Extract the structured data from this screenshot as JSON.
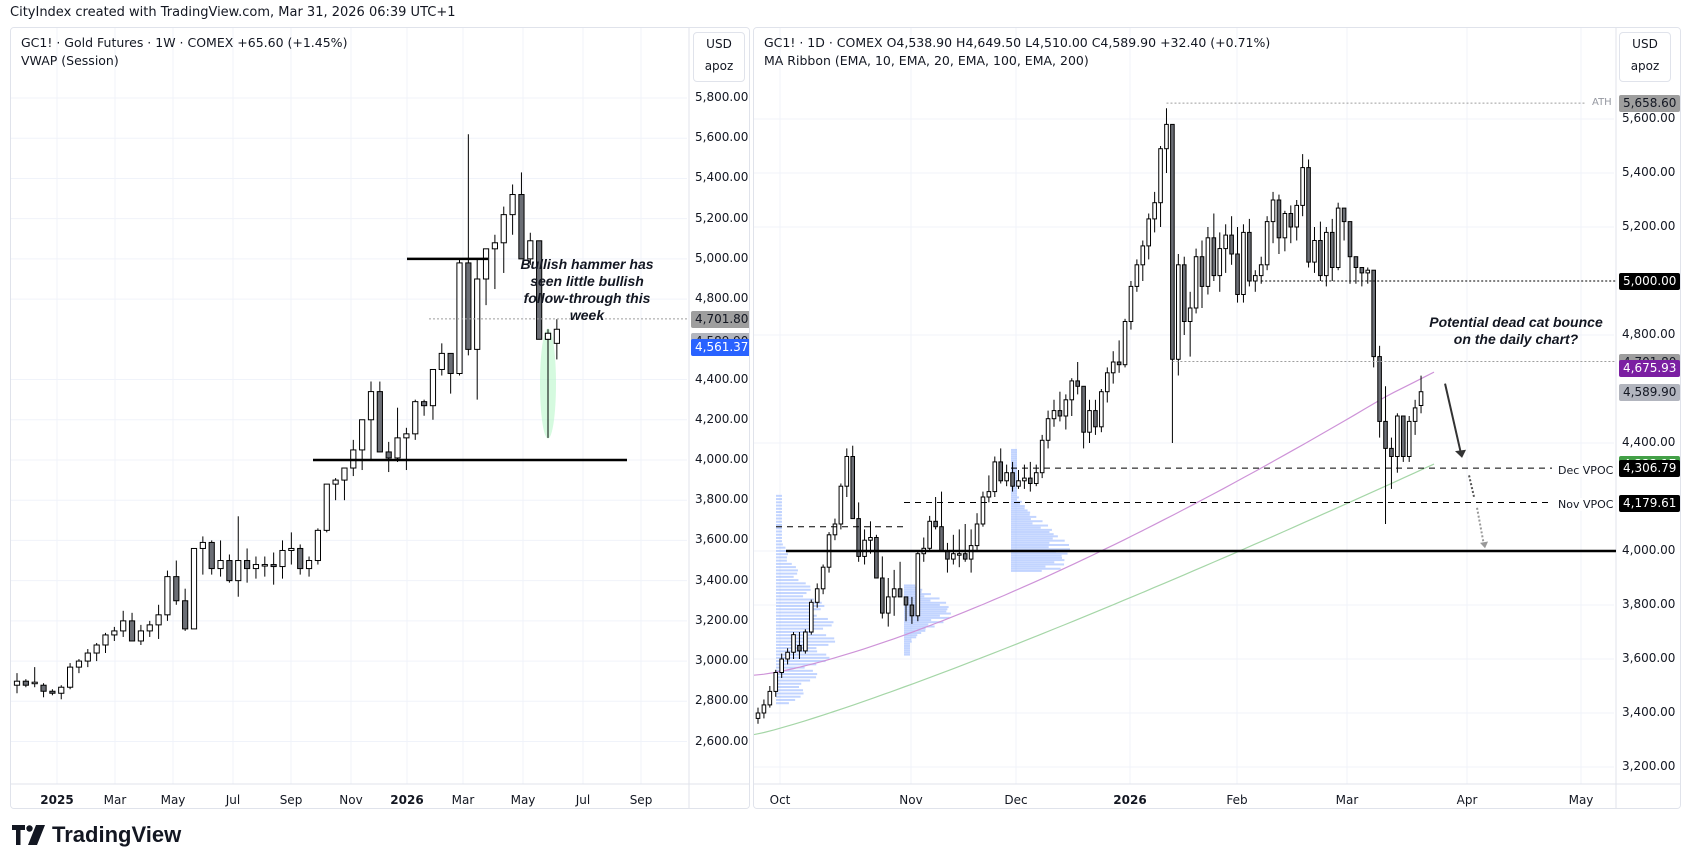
{
  "header": {
    "credit": "CityIndex created with TradingView.com, Mar 31, 2026 06:39 UTC+1"
  },
  "left_chart": {
    "legend_line1": "GC1! · Gold Futures · 1W · COMEX  +65.60 (+1.45%)",
    "legend_line2": "VWAP (Session)",
    "currency": "USD",
    "unit": "apoz",
    "price_ticks": [
      "5,800.00",
      "5,600.00",
      "5,400.00",
      "5,200.00",
      "5,000.00",
      "4,800.00",
      "4,400.00",
      "4,200.00",
      "4,000.00",
      "3,800.00",
      "3,600.00",
      "3,400.00",
      "3,200.00",
      "3,000.00",
      "2,800.00",
      "2,600.00"
    ],
    "tags": [
      {
        "value": "4,701.80",
        "bg": "#9e9e9e",
        "color": "#131722"
      },
      {
        "value": "4,589.90",
        "bg": "#b2b5be",
        "color": "#131722"
      },
      {
        "value": "4,561.37",
        "bg": "#2962ff",
        "color": "#ffffff"
      }
    ],
    "time_labels": [
      {
        "label": "2025",
        "bold": true
      },
      {
        "label": "Mar"
      },
      {
        "label": "May"
      },
      {
        "label": "Jul"
      },
      {
        "label": "Sep"
      },
      {
        "label": "Nov"
      },
      {
        "label": "2026",
        "bold": true
      },
      {
        "label": "Mar"
      },
      {
        "label": "May"
      },
      {
        "label": "Jul"
      },
      {
        "label": "Sep"
      }
    ],
    "annotation": "Bullish hammer has seen little bullish follow-through this week"
  },
  "right_chart": {
    "legend_line1": "GC1! · 1D · COMEX  O4,538.90  H4,649.50  L4,510.00  C4,589.90  +32.40 (+0.71%)",
    "legend_line2": "MA Ribbon (EMA, 10, EMA, 20, EMA, 100, EMA, 200)",
    "currency": "USD",
    "unit": "apoz",
    "price_ticks": [
      "5,600.00",
      "5,400.00",
      "5,200.00",
      "4,800.00",
      "4,400.00",
      "4,000.00",
      "3,800.00",
      "3,600.00",
      "3,400.00",
      "3,200.00"
    ],
    "tags": [
      {
        "value": "5,658.60",
        "bg": "#9e9e9e",
        "color": "#131722",
        "label": "ATH"
      },
      {
        "value": "5,000.00",
        "bg": "#000000",
        "color": "#ffffff"
      },
      {
        "value": "4,701.80",
        "bg": "#9e9e9e",
        "color": "#131722"
      },
      {
        "value": "4,675.93",
        "bg": "#7b1fa2",
        "color": "#ffffff"
      },
      {
        "value": "4,589.90",
        "bg": "#b2b5be",
        "color": "#131722"
      },
      {
        "value": "4,322.17",
        "bg": "#43a047",
        "color": "#ffffff"
      },
      {
        "value": "4,306.79",
        "bg": "#000000",
        "color": "#ffffff"
      },
      {
        "value": "4,179.61",
        "bg": "#000000",
        "color": "#ffffff"
      }
    ],
    "vpoc_labels": {
      "dec": "Dec VPOC",
      "nov": "Nov VPOC"
    },
    "ath_label": "ATH",
    "time_labels": [
      {
        "label": "Oct"
      },
      {
        "label": "Nov"
      },
      {
        "label": "Dec"
      },
      {
        "label": "2026",
        "bold": true
      },
      {
        "label": "Feb"
      },
      {
        "label": "Mar"
      },
      {
        "label": "Apr"
      },
      {
        "label": "May"
      }
    ],
    "annotation": "Potential dead cat bounce on the daily chart?"
  },
  "footer": {
    "brand": "TradingView"
  },
  "chart_data": [
    {
      "type": "candlestick",
      "title": "GC1! · Gold Futures · 1W · COMEX",
      "subtitle": "VWAP (Session)",
      "ylabel": "USD apoz",
      "ylim": [
        2450,
        5900
      ],
      "x_range": [
        "Dec 2024",
        "Sep 2026"
      ],
      "grid": true,
      "last_change": "+65.60 (+1.45%)",
      "price_levels": {
        "prior_high_line": 4701.8,
        "last_close": 4589.9,
        "vwap": 4561.37,
        "support_line": 4000,
        "resistance_line": 5000
      },
      "approx_path": [
        {
          "date": "2024-12",
          "close": 2650
        },
        {
          "date": "2025-02",
          "close": 2900
        },
        {
          "date": "2025-04",
          "close": 3300
        },
        {
          "date": "2025-06",
          "close": 3350
        },
        {
          "date": "2025-08",
          "close": 3450
        },
        {
          "date": "2025-10",
          "close": 4000
        },
        {
          "date": "2025-11",
          "close": 4100
        },
        {
          "date": "2026-01",
          "close": 4700
        },
        {
          "date": "2026-01-high",
          "close": 5650
        },
        {
          "date": "2026-03",
          "close": 5400
        },
        {
          "date": "2026-03-late",
          "close": 4560
        },
        {
          "date": "2026-03-31",
          "close": 4590
        }
      ],
      "annotations": [
        "Bullish hammer has seen little bullish follow-through this week"
      ]
    },
    {
      "type": "candlestick",
      "title": "GC1! · 1D · COMEX",
      "ohlc": {
        "open": 4538.9,
        "high": 4649.5,
        "low": 4510.0,
        "close": 4589.9,
        "change": 32.4,
        "change_pct": 0.71
      },
      "indicators": [
        "MA Ribbon (EMA 10, EMA 20, EMA 100, EMA 200)",
        "Volume profile (monthly)"
      ],
      "ylabel": "USD apoz",
      "ylim": [
        3150,
        5750
      ],
      "x_range": [
        "Sep 2025",
        "May 2026"
      ],
      "grid": true,
      "price_levels": {
        "ATH": 5658.6,
        "round_5000": 5000.0,
        "prior_level": 4701.8,
        "ema_100": 4675.93,
        "last_close": 4589.9,
        "ema_200": 4322.17,
        "dec_vpoc": 4306.79,
        "nov_vpoc": 4179.61,
        "support_line": 4000
      },
      "approx_path": [
        {
          "date": "2025-09-25",
          "close": 3400
        },
        {
          "date": "2025-10-20",
          "close": 4350
        },
        {
          "date": "2025-10-28",
          "close": 3950
        },
        {
          "date": "2025-12-01",
          "close": 4250
        },
        {
          "date": "2026-01-01",
          "close": 4400
        },
        {
          "date": "2026-01-29",
          "close": 5500
        },
        {
          "date": "2026-02-02",
          "close": 4700
        },
        {
          "date": "2026-03-02",
          "close": 5350
        },
        {
          "date": "2026-03-20",
          "close": 4400
        },
        {
          "date": "2026-03-31",
          "close": 4590
        }
      ],
      "annotations": [
        "Potential dead cat bounce on the daily chart?",
        "Dec VPOC",
        "Nov VPOC",
        "ATH"
      ]
    }
  ]
}
